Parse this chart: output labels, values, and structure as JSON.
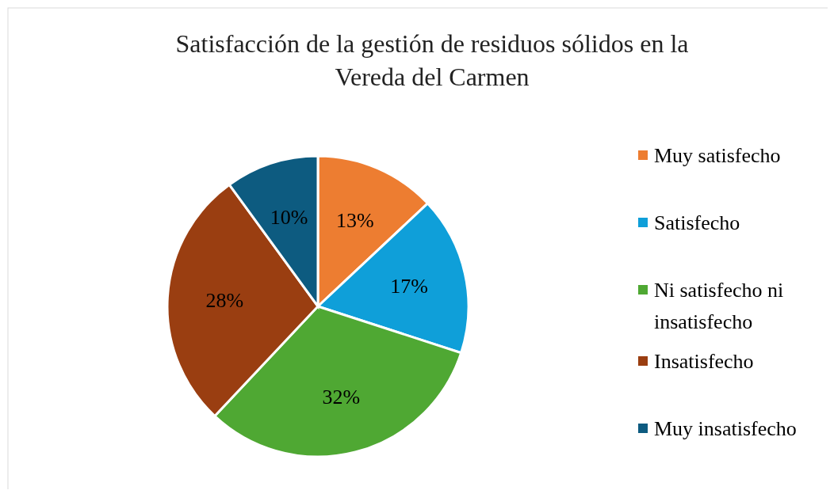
{
  "chart_data": {
    "type": "pie",
    "title": "Satisfacción de la gestión de residuos sólidos en la Vereda del Carmen",
    "categories": [
      "Muy satisfecho",
      "Satisfecho",
      "Ni satisfecho ni insatisfecho",
      "Insatisfecho",
      "Muy insatisfecho"
    ],
    "values": [
      13,
      17,
      32,
      28,
      10
    ],
    "colors": [
      "#ed7d31",
      "#0f9fd9",
      "#4fa833",
      "#9a3e11",
      "#0d5b80"
    ],
    "value_labels": [
      "13%",
      "17%",
      "32%",
      "28%",
      "10%"
    ],
    "legend": "right"
  }
}
